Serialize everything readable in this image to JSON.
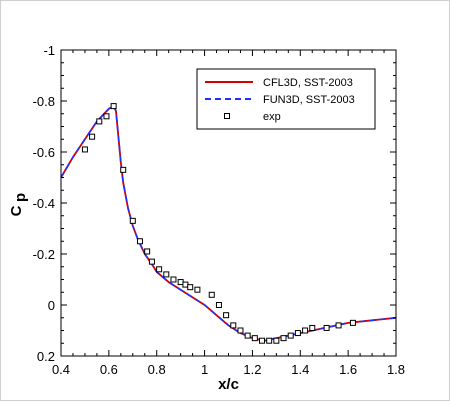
{
  "chart_data": {
    "type": "line",
    "xlabel": "x/c",
    "ylabel_main": "C",
    "ylabel_sub": "p",
    "xlim": [
      0.4,
      1.8
    ],
    "ylim": [
      0.2,
      -1.0
    ],
    "y_inverted": true,
    "x_ticks": [
      "0.4",
      "0.6",
      "0.8",
      "1",
      "1.2",
      "1.4",
      "1.6",
      "1.8"
    ],
    "y_ticks": [
      "-1",
      "-0.8",
      "-0.6",
      "-0.4",
      "-0.2",
      "0",
      "0.2"
    ],
    "legend_position": "top-right",
    "series": [
      {
        "name": "CFL3D, SST-2003",
        "style": "solid",
        "color": "#d40000",
        "x": [
          0.4,
          0.45,
          0.5,
          0.55,
          0.58,
          0.6,
          0.62,
          0.63,
          0.64,
          0.65,
          0.66,
          0.68,
          0.7,
          0.72,
          0.75,
          0.78,
          0.8,
          0.85,
          0.9,
          0.95,
          1.0,
          1.05,
          1.1,
          1.15,
          1.2,
          1.25,
          1.3,
          1.35,
          1.4,
          1.5,
          1.6,
          1.7,
          1.8
        ],
        "y": [
          -0.5,
          -0.58,
          -0.65,
          -0.72,
          -0.75,
          -0.77,
          -0.78,
          -0.76,
          -0.66,
          -0.56,
          -0.48,
          -0.38,
          -0.31,
          -0.26,
          -0.2,
          -0.16,
          -0.13,
          -0.09,
          -0.06,
          -0.03,
          0.0,
          0.04,
          0.08,
          0.11,
          0.13,
          0.14,
          0.13,
          0.12,
          0.11,
          0.09,
          0.07,
          0.06,
          0.05
        ]
      },
      {
        "name": "FUN3D, SST-2003",
        "style": "dashed",
        "color": "#1e2fff",
        "x": [
          0.4,
          0.45,
          0.5,
          0.55,
          0.58,
          0.6,
          0.62,
          0.63,
          0.64,
          0.65,
          0.66,
          0.68,
          0.7,
          0.72,
          0.75,
          0.78,
          0.8,
          0.85,
          0.9,
          0.95,
          1.0,
          1.05,
          1.1,
          1.15,
          1.2,
          1.25,
          1.3,
          1.35,
          1.4,
          1.5,
          1.6,
          1.7,
          1.8
        ],
        "y": [
          -0.5,
          -0.58,
          -0.65,
          -0.72,
          -0.75,
          -0.77,
          -0.78,
          -0.76,
          -0.66,
          -0.56,
          -0.48,
          -0.38,
          -0.31,
          -0.26,
          -0.2,
          -0.16,
          -0.13,
          -0.09,
          -0.06,
          -0.03,
          0.0,
          0.04,
          0.08,
          0.11,
          0.13,
          0.14,
          0.13,
          0.12,
          0.11,
          0.09,
          0.07,
          0.06,
          0.05
        ]
      },
      {
        "name": "exp",
        "style": "markers",
        "color": "#000000",
        "x": [
          0.5,
          0.53,
          0.56,
          0.59,
          0.62,
          0.66,
          0.7,
          0.73,
          0.76,
          0.78,
          0.81,
          0.84,
          0.87,
          0.9,
          0.92,
          0.94,
          0.97,
          1.03,
          1.06,
          1.09,
          1.12,
          1.15,
          1.18,
          1.21,
          1.24,
          1.27,
          1.3,
          1.33,
          1.36,
          1.39,
          1.42,
          1.45,
          1.51,
          1.56,
          1.62
        ],
        "y": [
          -0.61,
          -0.66,
          -0.72,
          -0.74,
          -0.78,
          -0.53,
          -0.33,
          -0.25,
          -0.21,
          -0.17,
          -0.14,
          -0.12,
          -0.1,
          -0.09,
          -0.08,
          -0.07,
          -0.06,
          -0.04,
          0.0,
          0.04,
          0.08,
          0.1,
          0.12,
          0.13,
          0.14,
          0.14,
          0.14,
          0.13,
          0.12,
          0.11,
          0.1,
          0.09,
          0.09,
          0.08,
          0.07
        ]
      }
    ]
  }
}
